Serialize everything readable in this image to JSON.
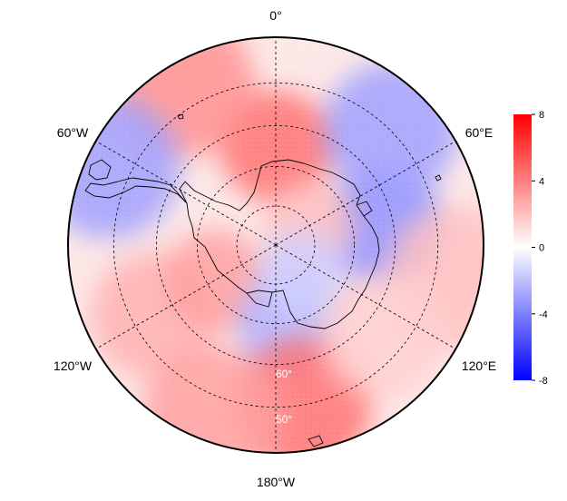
{
  "map": {
    "projection": "south-polar-stereographic",
    "longitude_labels": {
      "lon_0": "0°",
      "lon_60e": "60°E",
      "lon_120e": "120°E",
      "lon_180": "180°W",
      "lon_120w": "120°W",
      "lon_60w": "60°W"
    },
    "latitude_labels": {
      "lat_1": "60°",
      "lat_2": "50°"
    },
    "gridlines": "dashed",
    "coastlines": true
  },
  "colorbar": {
    "cmap": "bwr",
    "vmin": -8,
    "vmax": 8,
    "tick_labels": {
      "t0": "8",
      "t1": "4",
      "t2": "0",
      "t3": "-4",
      "t4": "-8"
    },
    "low_color": "#0000ff",
    "mid_color": "#ffffff",
    "high_color": "#ff0000"
  },
  "field_anomalies": [
    {
      "lon": 0,
      "lat": -65,
      "value": 4.5
    },
    {
      "lon": -30,
      "lat": -45,
      "value": 3.5
    },
    {
      "lon": -65,
      "lat": -45,
      "value": -3.0
    },
    {
      "lon": -120,
      "lat": -55,
      "value": 2.5
    },
    {
      "lon": -120,
      "lat": -72,
      "value": 3.0
    },
    {
      "lon": 170,
      "lat": -70,
      "value": -2.5
    },
    {
      "lon": 170,
      "lat": -50,
      "value": 4.5
    },
    {
      "lon": 80,
      "lat": -62,
      "value": -3.5
    },
    {
      "lon": 100,
      "lat": -45,
      "value": 2.0
    },
    {
      "lon": 45,
      "lat": -50,
      "value": -3.0
    },
    {
      "lon": 60,
      "lat": -80,
      "value": 2.0
    },
    {
      "lon": 140,
      "lat": -80,
      "value": -1.5
    },
    {
      "lon": 130,
      "lat": -55,
      "value": 1.5
    },
    {
      "lon": -160,
      "lat": -45,
      "value": 3.0
    }
  ]
}
